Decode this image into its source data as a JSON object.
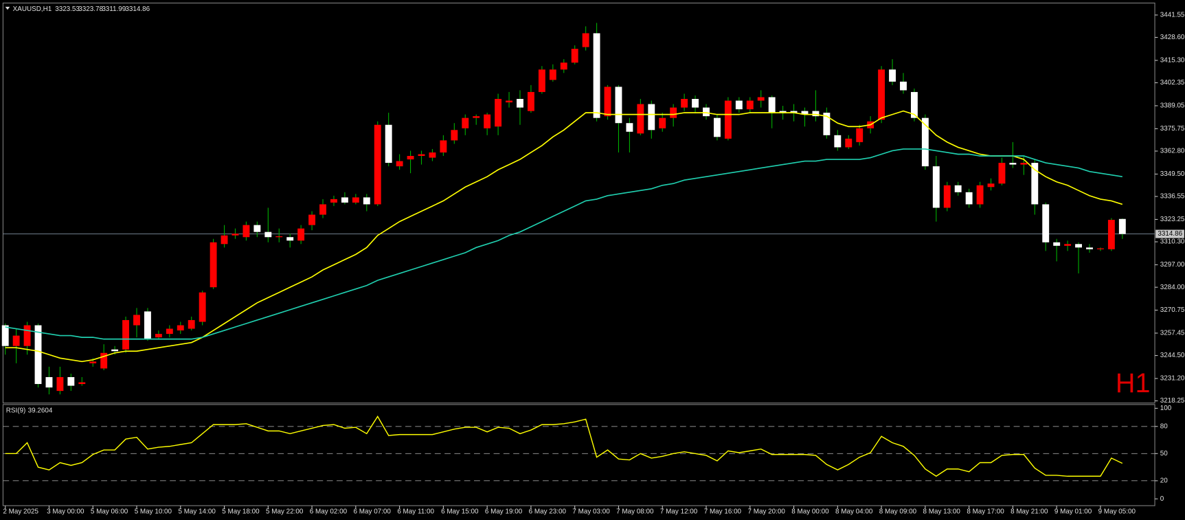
{
  "chart_data": {
    "type": "candlestick",
    "title": "XAUUSD,H1",
    "watermark": "H1",
    "colors": {
      "up": "#ff0000",
      "down": "#ffffff",
      "wick": "#00b000",
      "background": "#000000",
      "axis": "#c0c0c0"
    },
    "categories": [
      "2 May 2025",
      null,
      null,
      null,
      "3 May 00:00",
      null,
      null,
      null,
      "5 May 06:00",
      null,
      null,
      null,
      "5 May 10:00",
      null,
      null,
      null,
      "5 May 14:00",
      null,
      null,
      null,
      "5 May 18:00",
      null,
      null,
      null,
      "5 May 22:00",
      null,
      null,
      null,
      "6 May 02:00",
      null,
      null,
      null,
      "6 May 07:00",
      null,
      null,
      null,
      "6 May 11:00",
      null,
      null,
      null,
      "6 May 15:00",
      null,
      null,
      null,
      "6 May 19:00",
      null,
      null,
      null,
      "6 May 23:00",
      null,
      null,
      null,
      "7 May 03:00",
      null,
      null,
      null,
      "7 May 08:00",
      null,
      null,
      null,
      "7 May 12:00",
      null,
      null,
      null,
      "7 May 16:00",
      null,
      null,
      null,
      "7 May 20:00",
      null,
      null,
      null,
      "8 May 00:00",
      null,
      null,
      null,
      "8 May 04:00",
      null,
      null,
      null,
      "8 May 09:00",
      null,
      null,
      null,
      "8 May 13:00",
      null,
      null,
      null,
      "8 May 17:00",
      null,
      null,
      null,
      "8 May 21:00",
      null,
      null,
      null,
      "9 May 01:00",
      null,
      null,
      null,
      "9 May 05:00",
      null,
      null
    ],
    "open": [
      3262,
      3250,
      3250,
      3262,
      3232,
      3224,
      3232,
      3228,
      3240,
      3237,
      3248,
      3248,
      3262,
      3270,
      3255,
      3257,
      3259,
      3260,
      3264,
      3284,
      3309,
      3314,
      3313,
      3320,
      3316,
      3313,
      3313,
      3311,
      3320,
      3326,
      3333,
      3336,
      3333,
      3336,
      3332,
      3378,
      3354,
      3358,
      3360,
      3359,
      3362,
      3369,
      3376,
      3382,
      3376,
      3377,
      3391,
      3393,
      3386,
      3397,
      3404,
      3410,
      3414,
      3423,
      3431,
      3383,
      3400,
      3379,
      3373,
      3390,
      3376,
      3382,
      3388,
      3393,
      3388,
      3382,
      3370,
      3392,
      3387,
      3392,
      3394,
      3386,
      3386,
      3386,
      3386,
      3385,
      3372,
      3365,
      3368,
      3376,
      3381,
      3410,
      3403,
      3397,
      3382,
      3354,
      3330,
      3343,
      3339,
      3332,
      3342,
      3344,
      3356,
      3355,
      3356,
      3332,
      3310,
      3308,
      3309,
      3307,
      3306,
      3306,
      3323.53
    ],
    "high": [
      3263,
      3260,
      3264,
      3263,
      3238,
      3238,
      3234,
      3232,
      3243,
      3251,
      3250,
      3267,
      3272,
      3272,
      3259,
      3262,
      3264,
      3267,
      3282,
      3312,
      3320,
      3318,
      3322,
      3322,
      3330,
      3318,
      3315,
      3320,
      3328,
      3335,
      3337,
      3339,
      3338,
      3338,
      3380,
      3385,
      3361,
      3363,
      3363,
      3364,
      3372,
      3379,
      3384,
      3384,
      3385,
      3396,
      3397,
      3398,
      3401,
      3412,
      3413,
      3416,
      3424,
      3435,
      3437,
      3401,
      3401,
      3382,
      3393,
      3392,
      3385,
      3390,
      3396,
      3395,
      3390,
      3384,
      3394,
      3394,
      3394,
      3398,
      3395,
      3389,
      3390,
      3388,
      3398,
      3388,
      3375,
      3372,
      3378,
      3383,
      3412,
      3416,
      3408,
      3399,
      3384,
      3360,
      3345,
      3345,
      3341,
      3345,
      3347,
      3359,
      3368,
      3360,
      3358,
      3333,
      3312,
      3311,
      3310,
      3309,
      3307,
      3324,
      3323.78
    ],
    "low": [
      3245,
      3240,
      3245,
      3226,
      3222,
      3222,
      3224,
      3227,
      3238,
      3236,
      3245,
      3246,
      3255,
      3253,
      3254,
      3255,
      3257,
      3259,
      3262,
      3283,
      3307,
      3312,
      3311,
      3313,
      3310,
      3310,
      3307,
      3309,
      3317,
      3324,
      3331,
      3332,
      3332,
      3328,
      3331,
      3354,
      3352,
      3350,
      3355,
      3357,
      3360,
      3367,
      3372,
      3378,
      3372,
      3372,
      3388,
      3378,
      3385,
      3396,
      3403,
      3408,
      3413,
      3421,
      3380,
      3381,
      3362,
      3362,
      3372,
      3370,
      3374,
      3377,
      3386,
      3385,
      3381,
      3369,
      3369,
      3385,
      3385,
      3388,
      3376,
      3381,
      3380,
      3377,
      3380,
      3370,
      3363,
      3364,
      3366,
      3373,
      3379,
      3401,
      3396,
      3380,
      3352,
      3322,
      3328,
      3337,
      3330,
      3330,
      3340,
      3343,
      3353,
      3349,
      3326,
      3305,
      3299,
      3305,
      3292,
      3304,
      3305,
      3305,
      3311.99
    ],
    "close": [
      3250,
      3256,
      3262,
      3228,
      3226,
      3232,
      3227,
      3229,
      3241,
      3246,
      3247,
      3265,
      3268,
      3254,
      3257,
      3260,
      3262,
      3265,
      3281,
      3310,
      3314,
      3315,
      3320,
      3316,
      3313,
      3313.5,
      3311,
      3318,
      3326,
      3332,
      3335,
      3333,
      3336,
      3332,
      3378,
      3356,
      3357,
      3360,
      3361,
      3362,
      3369,
      3375,
      3382,
      3383,
      3384,
      3393,
      3392,
      3388,
      3397,
      3410,
      3410,
      3414,
      3422,
      3431,
      3382,
      3400,
      3379,
      3374,
      3390,
      3375,
      3382,
      3388,
      3393,
      3388,
      3383,
      3371,
      3392,
      3387,
      3392,
      3394,
      3385,
      3385,
      3385,
      3384,
      3383,
      3372,
      3365,
      3370,
      3376,
      3380,
      3410,
      3403,
      3398,
      3382,
      3354,
      3330,
      3343,
      3339,
      3332,
      3343,
      3344,
      3356,
      3355,
      3356,
      3332,
      3310,
      3308,
      3309,
      3307,
      3306,
      3306.5,
      3323,
      3314.86
    ],
    "moving_averages": [
      {
        "color": "#ffff00",
        "values": [
          3249,
          3249,
          3248,
          3247,
          3245,
          3243,
          3242,
          3241,
          3242,
          3244,
          3246,
          3247,
          3247,
          3248,
          3249,
          3250,
          3251,
          3252,
          3255,
          3259,
          3263,
          3267,
          3271,
          3275,
          3278,
          3281,
          3284,
          3287,
          3290,
          3294,
          3297,
          3300,
          3303,
          3307,
          3314,
          3318,
          3322,
          3325,
          3328,
          3331,
          3334,
          3338,
          3342,
          3345,
          3348,
          3352,
          3355,
          3358,
          3362,
          3366,
          3371,
          3375,
          3380,
          3385,
          3385,
          3384,
          3384,
          3384,
          3384,
          3384,
          3384,
          3384,
          3385,
          3385,
          3385,
          3384,
          3384,
          3384,
          3385,
          3385,
          3385,
          3385,
          3385,
          3384,
          3384,
          3383,
          3379,
          3377,
          3377,
          3378,
          3382,
          3384,
          3386,
          3384,
          3378,
          3372,
          3368,
          3365,
          3363,
          3361,
          3360,
          3360,
          3360,
          3358,
          3352,
          3348,
          3345,
          3343,
          3340,
          3337,
          3335,
          3334,
          3332
        ]
      },
      {
        "color": "#20d0b0",
        "values": [
          3261,
          3260,
          3259,
          3258,
          3257,
          3256,
          3256,
          3255,
          3255,
          3254,
          3254,
          3254,
          3254,
          3254,
          3254,
          3254,
          3254,
          3254,
          3255,
          3257,
          3259,
          3261,
          3263,
          3265,
          3267,
          3269,
          3271,
          3273,
          3275,
          3277,
          3279,
          3281,
          3283,
          3285,
          3288,
          3290,
          3292,
          3294,
          3296,
          3298,
          3300,
          3302,
          3304,
          3307,
          3309,
          3311,
          3314,
          3316,
          3319,
          3322,
          3325,
          3328,
          3331,
          3334,
          3335,
          3337,
          3338,
          3339,
          3340,
          3341,
          3343,
          3344,
          3346,
          3347,
          3348,
          3349,
          3350,
          3351,
          3352,
          3353,
          3354,
          3355,
          3356,
          3357,
          3357,
          3358,
          3358,
          3358,
          3358,
          3359,
          3361,
          3363,
          3364,
          3364,
          3364,
          3363,
          3362,
          3361,
          3361,
          3360,
          3360,
          3360,
          3360,
          3360,
          3358,
          3356,
          3355,
          3354,
          3353,
          3351,
          3350,
          3349,
          3348
        ]
      }
    ],
    "ylim": [
      3217,
      3448.5
    ],
    "yticks": [
      3441.55,
      {
        "value": 3428.6,
        "label": "3428.60"
      },
      {
        "value": 3415.3,
        "label": "3415.30"
      },
      3402.35,
      3389.05,
      3375.75,
      {
        "value": 3362.8,
        "label": "3362.80"
      },
      {
        "value": 3349.5,
        "label": "3349.50"
      },
      3336.55,
      3323.25,
      {
        "value": 3310.3,
        "label": "3310.30"
      },
      {
        "value": 3297,
        "label": "3297.00"
      },
      {
        "value": 3284,
        "label": "3284.00"
      },
      3270.75,
      3257.45,
      {
        "value": 3244.5,
        "label": "3244.50"
      },
      {
        "value": 3231.2,
        "label": "3231.20"
      },
      3218.25
    ],
    "indicator": {
      "name": "RSI(9)",
      "color": "#ffff00",
      "values": [
        50,
        50,
        62,
        35,
        32,
        40,
        37,
        40,
        49,
        54,
        54,
        66,
        68,
        55,
        57,
        58,
        60,
        62,
        72,
        82,
        82,
        82,
        83,
        79,
        75,
        75,
        72,
        75,
        78,
        81,
        82,
        78,
        79,
        72,
        91,
        70,
        71,
        71,
        71,
        71,
        74,
        77,
        79,
        79,
        74,
        79,
        78,
        72,
        76,
        82,
        82,
        83,
        85,
        88,
        46,
        54,
        44,
        43,
        50,
        45,
        47,
        50,
        52,
        50,
        48,
        42,
        53,
        51,
        53,
        55,
        49,
        49,
        49,
        49,
        48,
        38,
        32,
        38,
        46,
        51,
        69,
        62,
        58,
        48,
        33,
        25,
        33,
        33,
        30,
        40,
        40,
        48,
        49,
        49,
        34,
        26,
        26,
        25,
        25,
        25,
        25,
        45,
        39.2604
      ],
      "ylim": [
        0,
        100
      ],
      "yticks": [
        0,
        20,
        50,
        80,
        100
      ]
    }
  }
}
